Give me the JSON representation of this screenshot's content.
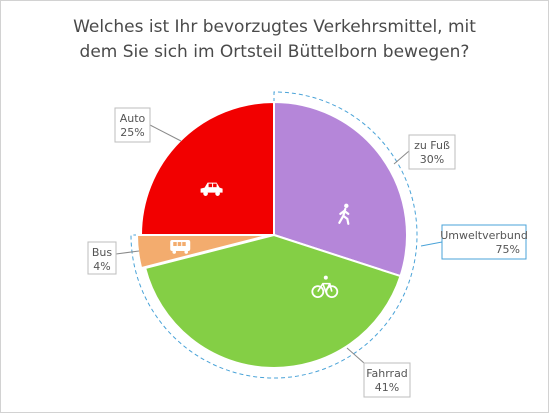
{
  "chart_data": {
    "type": "pie",
    "title": "Welches ist Ihr bevorzugtes Verkehrsmittel, mit dem Sie sich im Ortsteil Büttelborn bewegen?",
    "title_lines": [
      "Welches ist Ihr bevorzugtes Verkehrsmittel, mit",
      "dem Sie sich im Ortsteil Büttelborn bewegen?"
    ],
    "slices": [
      {
        "label": "zu Fuß",
        "value": 30,
        "value_label": "30%",
        "color": "#b586d9",
        "icon": "walking-person-icon"
      },
      {
        "label": "Fahrrad",
        "value": 41,
        "value_label": "41%",
        "color": "#84cf45",
        "icon": "bicycle-icon"
      },
      {
        "label": "Bus",
        "value": 4,
        "value_label": "4%",
        "color": "#f3ac6e",
        "icon": "bus-icon"
      },
      {
        "label": "Auto",
        "value": 25,
        "value_label": "25%",
        "color": "#f20000",
        "icon": "car-icon"
      }
    ],
    "group": {
      "label": "Umweltverbund",
      "value": 75,
      "value_label": "75%",
      "members": [
        "zu Fuß",
        "Fahrrad",
        "Bus"
      ],
      "outline_color": "#4aa3d8"
    }
  }
}
